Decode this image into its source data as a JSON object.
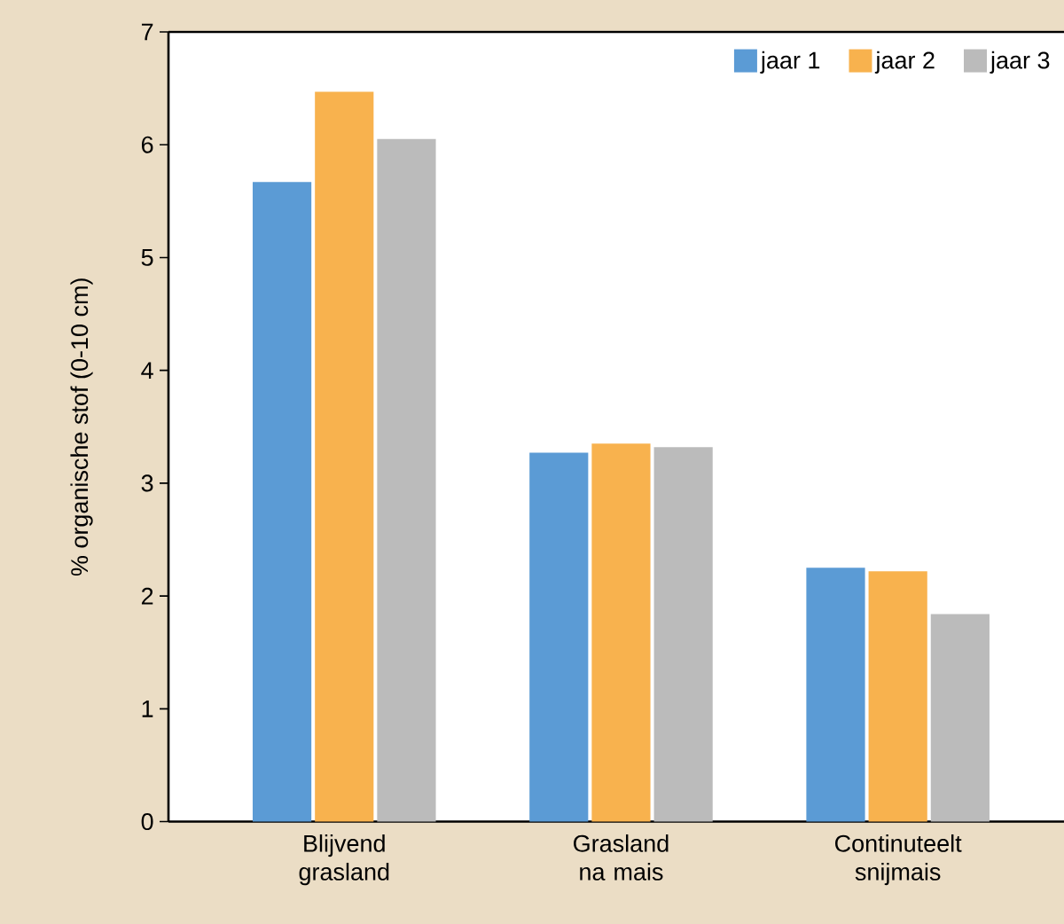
{
  "chart_data": {
    "type": "bar",
    "ylabel": "% organische stof (0-10 cm)",
    "categories": [
      "Blijvend\ngrasland",
      "Grasland\nna mais",
      "Continuteelt\nsnijmais"
    ],
    "series": [
      {
        "name": "jaar 1",
        "color": "#5b9bd5",
        "values": [
          5.67,
          3.27,
          2.25
        ]
      },
      {
        "name": "jaar 2",
        "color": "#f8b24e",
        "values": [
          6.47,
          3.35,
          2.22
        ]
      },
      {
        "name": "jaar 3",
        "color": "#bbbbbb",
        "values": [
          6.05,
          3.32,
          1.84
        ]
      }
    ],
    "ylim": [
      0,
      7
    ],
    "yticks": [
      0,
      1,
      2,
      3,
      4,
      5,
      6,
      7
    ],
    "grid": false,
    "legend": "top right"
  }
}
